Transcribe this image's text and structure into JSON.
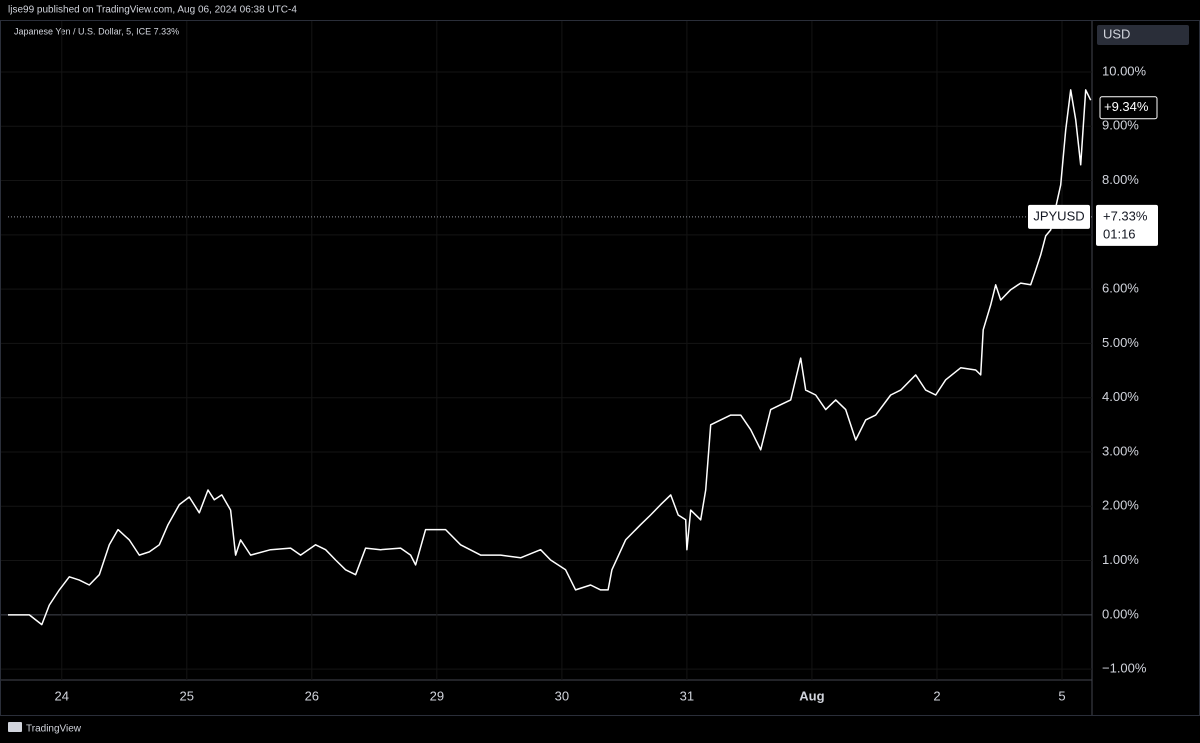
{
  "header": "ljse99 published on TradingView.com, Aug 06, 2024 06:38 UTC-4",
  "footer": "TradingView",
  "chart_data": {
    "type": "line",
    "title": "Japanese Yen / U.S. Dollar, 5, ICE  7.33%",
    "currency": "USD",
    "color": "#ffffff",
    "grid": true,
    "x": [
      0.57,
      0.74,
      0.84,
      0.9,
      0.98,
      1.06,
      1.14,
      1.22,
      1.3,
      1.38,
      1.45,
      1.54,
      1.62,
      1.7,
      1.78,
      1.85,
      1.94,
      2.02,
      2.1,
      2.17,
      2.22,
      2.28,
      2.35,
      2.39,
      2.43,
      2.51,
      2.67,
      2.83,
      2.91,
      3.03,
      3.11,
      3.19,
      3.27,
      3.35,
      3.43,
      3.55,
      3.71,
      3.79,
      3.83,
      3.91,
      4.07,
      4.19,
      4.35,
      4.51,
      4.67,
      4.83,
      4.91,
      5.03,
      5.11,
      5.23,
      5.31,
      5.37,
      5.4,
      5.51,
      5.63,
      5.71,
      5.79,
      5.87,
      5.93,
      5.99,
      6.0,
      6.03,
      6.11,
      6.15,
      6.19,
      6.27,
      6.35,
      6.43,
      6.51,
      6.59,
      6.67,
      6.75,
      6.83,
      6.91,
      6.95,
      7.03,
      7.11,
      7.19,
      7.27,
      7.35,
      7.43,
      7.51,
      7.63,
      7.71,
      7.83,
      7.91,
      7.99,
      8.07,
      8.19,
      8.31,
      8.35,
      8.37,
      8.43,
      8.47,
      8.51,
      8.59,
      8.67,
      8.75,
      8.79,
      8.83,
      8.87,
      8.91,
      8.99,
      9.03,
      9.07,
      9.11,
      9.15,
      9.19,
      9.23
    ],
    "values": [
      0,
      0,
      -0.18,
      0.18,
      0.46,
      0.7,
      0.64,
      0.55,
      0.74,
      1.29,
      1.57,
      1.38,
      1.1,
      1.16,
      1.29,
      1.66,
      2.03,
      2.17,
      1.88,
      2.3,
      2.12,
      2.21,
      1.93,
      1.1,
      1.38,
      1.1,
      1.2,
      1.23,
      1.1,
      1.29,
      1.2,
      1.01,
      0.83,
      0.74,
      1.23,
      1.2,
      1.23,
      1.1,
      0.92,
      1.57,
      1.57,
      1.29,
      1.1,
      1.1,
      1.05,
      1.2,
      1.01,
      0.83,
      0.46,
      0.55,
      0.46,
      0.46,
      0.83,
      1.38,
      1.66,
      1.84,
      2.03,
      2.21,
      1.84,
      1.75,
      1.2,
      1.93,
      1.75,
      2.3,
      3.5,
      3.59,
      3.68,
      3.68,
      3.41,
      3.04,
      3.78,
      3.87,
      3.96,
      4.73,
      4.14,
      4.05,
      3.78,
      3.96,
      3.78,
      3.22,
      3.59,
      3.68,
      4.05,
      4.14,
      4.42,
      4.14,
      4.05,
      4.33,
      4.55,
      4.51,
      4.42,
      5.25,
      5.71,
      6.08,
      5.8,
      5.99,
      6.11,
      6.08,
      6.35,
      6.63,
      6.98,
      7.09,
      7.92,
      8.93,
      9.67,
      9.12,
      8.29,
      9.67,
      9.48
    ],
    "xlim": [
      0.57,
      9.24
    ],
    "xticks": [
      {
        "value": 1,
        "label": "24"
      },
      {
        "value": 2,
        "label": "25"
      },
      {
        "value": 3,
        "label": "26"
      },
      {
        "value": 4,
        "label": "29"
      },
      {
        "value": 5,
        "label": "30"
      },
      {
        "value": 6,
        "label": "31"
      },
      {
        "value": 7,
        "label": "Aug"
      },
      {
        "value": 8,
        "label": "2"
      },
      {
        "value": 9,
        "label": "5"
      }
    ],
    "ylim": [
      -1.2,
      10.92
    ],
    "yticks": [
      {
        "value": -1,
        "label": "−1.00%"
      },
      {
        "value": 0,
        "label": "0.00%"
      },
      {
        "value": 1,
        "label": "1.00%"
      },
      {
        "value": 2,
        "label": "2.00%"
      },
      {
        "value": 3,
        "label": "3.00%"
      },
      {
        "value": 4,
        "label": "4.00%"
      },
      {
        "value": 5,
        "label": "5.00%"
      },
      {
        "value": 6,
        "label": "6.00%"
      },
      {
        "value": 7,
        "label": "7.00%"
      },
      {
        "value": 8,
        "label": "8.00%"
      },
      {
        "value": 9,
        "label": "9.00%"
      },
      {
        "value": 10,
        "label": "10.00%"
      }
    ],
    "price_labels": [
      {
        "value": 9.34,
        "label": "+9.34%"
      },
      {
        "value": 7.33,
        "label": "+7.33%",
        "symbol": "JPYUSD",
        "countdown": "01:16"
      }
    ]
  }
}
